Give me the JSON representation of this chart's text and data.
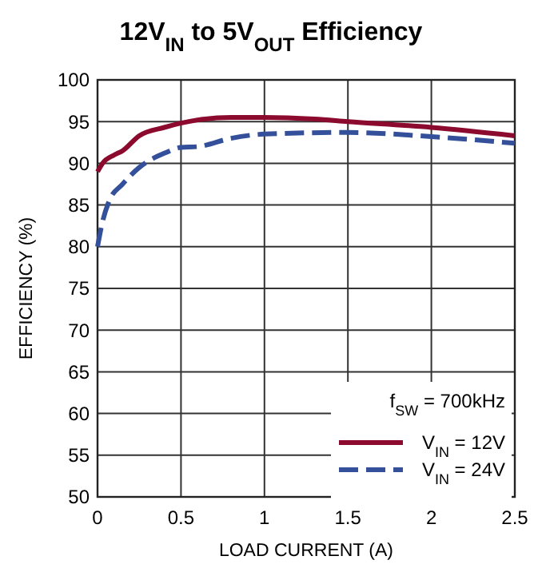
{
  "chart_data": {
    "type": "line",
    "title": "12V$_{IN}$ to 5V$_{OUT}$ Efficiency",
    "xlabel": "LOAD CURRENT (A)",
    "ylabel": "EFFICIENCY (%)",
    "xlim": [
      0,
      2.5
    ],
    "xticks": [
      0,
      0.5,
      1,
      1.5,
      2,
      2.5
    ],
    "ylim": [
      50,
      100
    ],
    "yticks": [
      50,
      55,
      60,
      65,
      70,
      75,
      80,
      85,
      90,
      95,
      100
    ],
    "grid": true,
    "legend": "bottom right",
    "annotations": [
      "f$_{SW}$ = 700kHz"
    ],
    "series": [
      {
        "name": "V$_{IN}$ = 12V",
        "color": "#8b0a2e",
        "line_style": "solid",
        "x": [
          0,
          0.03,
          0.1,
          0.15,
          0.25,
          0.4,
          0.6,
          0.8,
          1.0,
          1.3,
          1.5,
          2.0,
          2.5
        ],
        "values": [
          89,
          90,
          91,
          91.5,
          93.3,
          94.3,
          95.2,
          95.5,
          95.5,
          95.3,
          95.0,
          94.3,
          93.3
        ]
      },
      {
        "name": "V$_{IN}$ = 24V",
        "color": "#34509a",
        "line_style": "dashed",
        "x": [
          0,
          0.03,
          0.07,
          0.15,
          0.25,
          0.4,
          0.5,
          0.6,
          0.8,
          1.0,
          1.5,
          2.0,
          2.5
        ],
        "values": [
          80,
          83,
          85.5,
          87.5,
          89.5,
          91.2,
          91.9,
          92.0,
          93.0,
          93.5,
          93.7,
          93.2,
          92.4
        ]
      }
    ]
  }
}
